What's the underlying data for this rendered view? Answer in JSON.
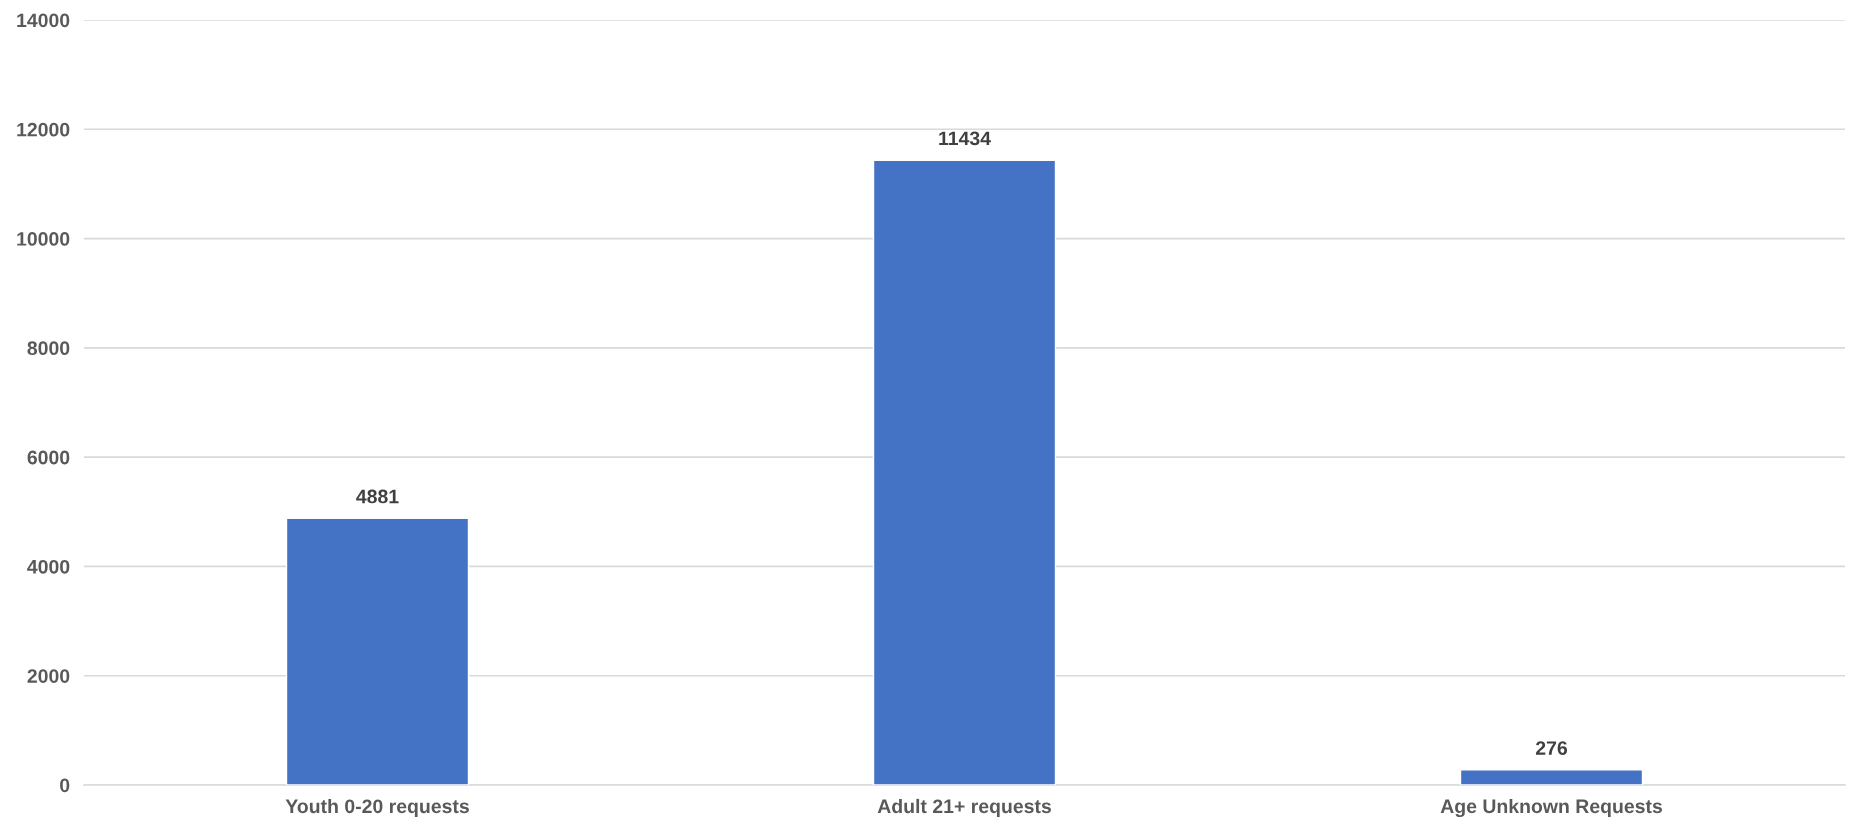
{
  "chart_data": {
    "type": "bar",
    "categories": [
      "Youth 0-20 requests",
      "Adult 21+ requests",
      "Age Unknown Requests"
    ],
    "values": [
      4881,
      11434,
      276
    ],
    "color": "#4472c4",
    "ylim": [
      0,
      14000
    ],
    "yticks": [
      0,
      2000,
      4000,
      6000,
      8000,
      10000,
      12000,
      14000
    ],
    "grid": "y",
    "data_labels": true
  }
}
